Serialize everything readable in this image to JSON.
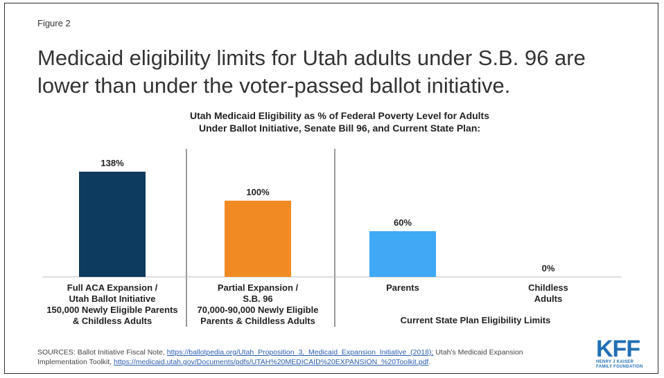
{
  "figure_label": "Figure 2",
  "headline": "Medicaid eligibility limits for Utah adults under S.B. 96 are lower than under the voter-passed ballot initiative.",
  "chart_data": {
    "type": "bar",
    "title_lines": [
      "Utah Medicaid Eligibility  as % of Federal Poverty Level for Adults",
      "Under Ballot Initiative, Senate Bill  96, and Current State Plan:"
    ],
    "categories": [
      {
        "label_lines": [
          "Full ACA Expansion /",
          "Utah Ballot Initiative",
          "150,000 Newly Eligible Parents",
          "& Childless Adults"
        ],
        "value": 138,
        "value_label": "138%",
        "color": "#0d3a5f"
      },
      {
        "label_lines": [
          "Partial Expansion /",
          "S.B. 96",
          "70,000-90,000 Newly Eligible",
          "Parents & Childless Adults"
        ],
        "value": 100,
        "value_label": "100%",
        "color": "#f18a23"
      },
      {
        "label_lines": [
          "Parents"
        ],
        "value": 60,
        "value_label": "60%",
        "color": "#3fa9f5"
      },
      {
        "label_lines": [
          "Childless",
          "Adults"
        ],
        "value": 0,
        "value_label": "0%",
        "color": "#3fa9f5"
      }
    ],
    "group_label": "Current State Plan Eligibility Limits",
    "ylim": [
      0,
      138
    ],
    "grid": false
  },
  "sources": {
    "prefix": "SOURCES:  Ballot Initiative Fiscal Note, ",
    "link1": "https://ballotpedia.org/Utah_Proposition_3,_Medicaid_Expansion_Initiative_(2018);",
    "middle": "  Utah's Medicaid Expansion Implementation Toolkit, ",
    "link2": "https://medicaid.utah.gov/Documents/pdfs/UTAH%20MEDICAID%20EXPANSION_%20Toolkit.pdf",
    "suffix": "."
  },
  "logo": {
    "mark": "KFF",
    "line1": "HENRY J KAISER",
    "line2": "FAMILY FOUNDATION"
  }
}
